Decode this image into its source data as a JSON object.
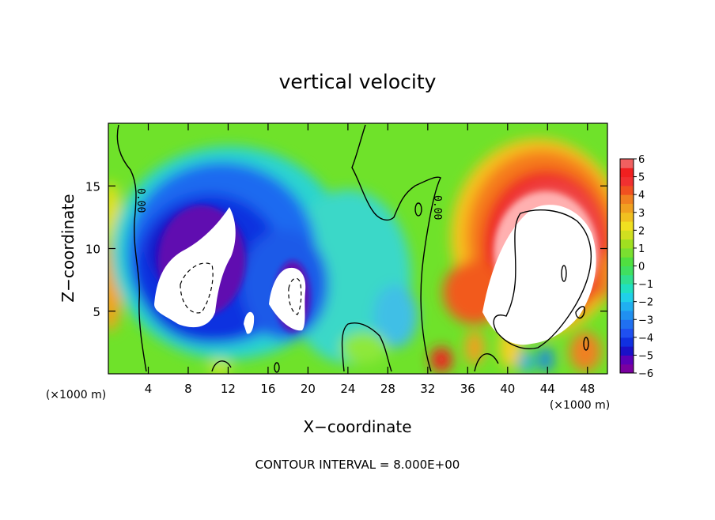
{
  "chart_data": {
    "type": "heatmap",
    "title": "vertical velocity",
    "xlabel": "X−coordinate",
    "ylabel": "Z−coordinate",
    "x_unit": "(×1000 m)",
    "y_unit": "(×1000 m)",
    "xlim": [
      0,
      50
    ],
    "ylim": [
      0,
      20
    ],
    "x_ticks": [
      4,
      8,
      12,
      16,
      20,
      24,
      28,
      32,
      36,
      40,
      44,
      48
    ],
    "y_ticks": [
      5,
      10,
      15
    ],
    "x_tick_labels": [
      "4",
      "8",
      "12",
      "16",
      "20",
      "24",
      "28",
      "32",
      "36",
      "40",
      "44",
      "48"
    ],
    "y_tick_labels": [
      "5",
      "10",
      "15"
    ],
    "colorbar": {
      "range": [
        -6,
        6
      ],
      "ticks": [
        6,
        5,
        4,
        3,
        2,
        1,
        0,
        -1,
        -2,
        -3,
        -4,
        -5,
        -6
      ],
      "tick_labels": [
        "6",
        "5",
        "4",
        "3",
        "2",
        "1",
        "0",
        "−1",
        "−2",
        "−3",
        "−4",
        "−5",
        "−6"
      ]
    },
    "contour_labels": [
      "0.00",
      "0.00"
    ],
    "footer": "CONTOUR INTERVAL = 8.000E+00",
    "features": [
      {
        "kind": "downdraft",
        "x": 10,
        "z": 8.5,
        "value": -10,
        "contour": "dashed"
      },
      {
        "kind": "downdraft",
        "x": 19,
        "z": 7.0,
        "value": -8,
        "contour": "dashed"
      },
      {
        "kind": "downdraft",
        "x": 14,
        "z": 4.0,
        "value": -6
      },
      {
        "kind": "updraft",
        "x": 44,
        "z": 8.5,
        "value": 10,
        "contour": "solid"
      }
    ],
    "grid": false,
    "legend_position": "right"
  }
}
